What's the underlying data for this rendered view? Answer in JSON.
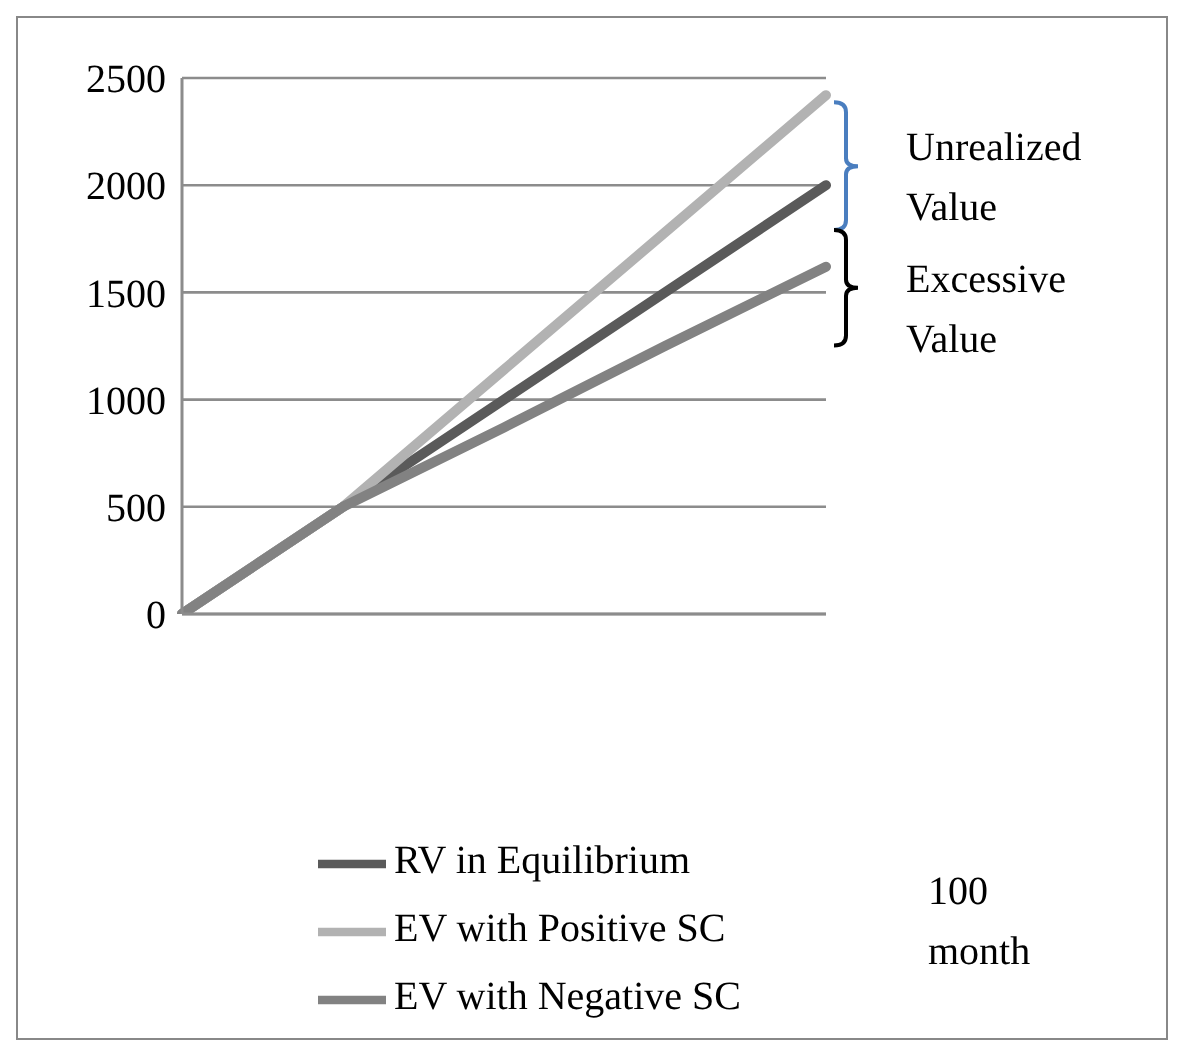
{
  "chart_data": {
    "type": "line",
    "categories": [
      null,
      null,
      null,
      null,
      null
    ],
    "series": [
      {
        "name": "RV in Equilibrium",
        "color": "#5a5a5a",
        "values": [
          0,
          500,
          1000,
          1500,
          2000
        ]
      },
      {
        "name": "EV with Positive SC",
        "color": "#b2b2b2",
        "values": [
          0,
          500,
          1140,
          1780,
          2420
        ]
      },
      {
        "name": "EV with Negative SC",
        "color": "#828282",
        "values": [
          0,
          500,
          870,
          1250,
          1620
        ]
      }
    ],
    "ylim": [
      0,
      2500
    ],
    "yticks": [
      0,
      500,
      1000,
      1500,
      2000,
      2500
    ],
    "grid": "y",
    "legend": "bottom",
    "marker": "none",
    "line_style": "solid",
    "tick_labels": "y",
    "annotations": [
      "Unrealized Value",
      "Excessive Value",
      "100 month"
    ]
  }
}
